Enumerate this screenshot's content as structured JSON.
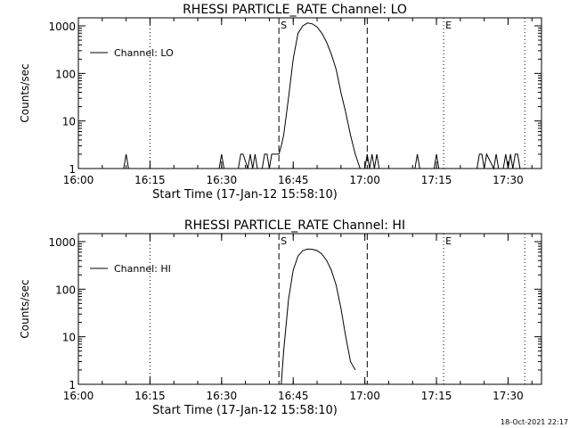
{
  "footer": {
    "timestamp": "18-Oct-2021 22:17"
  },
  "chart_data": [
    {
      "type": "line",
      "title": "RHESSI PARTICLE_RATE Channel: LO",
      "xlabel": "Start Time (17-Jan-12 15:58:10)",
      "ylabel": "Counts/sec",
      "yscale": "log",
      "ylim": [
        1,
        1000
      ],
      "xlim": [
        "16:00",
        "17:37"
      ],
      "xticks": [
        "16:00",
        "16:15",
        "16:30",
        "16:45",
        "17:00",
        "17:15",
        "17:30"
      ],
      "yticks": [
        "1",
        "10",
        "100",
        "1000"
      ],
      "legend": {
        "placement": "top-left"
      },
      "grid": false,
      "series": [
        {
          "name": "Channel: LO",
          "x": [
            "16:09:30",
            "16:10:00",
            "16:10:30",
            "16:29:30",
            "16:30:00",
            "16:30:30",
            "16:33:30",
            "16:34:00",
            "16:34:30",
            "16:35:30",
            "16:36:00",
            "16:36:30",
            "16:37:00",
            "16:37:30",
            "16:38:30",
            "16:39:00",
            "16:39:30",
            "16:40:00",
            "16:40:30",
            "16:41:00",
            "16:41:30",
            "16:42:00",
            "16:42:30",
            "16:43:00",
            "16:44:00",
            "16:45:00",
            "16:46:00",
            "16:47:00",
            "16:48:00",
            "16:49:00",
            "16:50:00",
            "16:51:00",
            "16:52:00",
            "16:53:00",
            "16:54:00",
            "16:55:00",
            "16:56:00",
            "16:57:00",
            "16:58:00",
            "16:59:00",
            "17:00:00",
            "17:00:30",
            "17:01:00",
            "17:01:30",
            "17:02:00",
            "17:02:30",
            "17:03:00",
            "17:03:30",
            "17:10:30",
            "17:11:00",
            "17:11:30",
            "17:14:30",
            "17:15:00",
            "17:15:30",
            "17:23:30",
            "17:24:00",
            "17:24:30",
            "17:25:00",
            "17:25:30",
            "17:27:00",
            "17:27:30",
            "17:28:00",
            "17:29:00",
            "17:29:30",
            "17:30:00",
            "17:30:30",
            "17:31:00",
            "17:31:30",
            "17:32:00",
            "17:32:30"
          ],
          "y": [
            1,
            2,
            1,
            1,
            2,
            1,
            1,
            2,
            2,
            1,
            2,
            1,
            2,
            1,
            1,
            2,
            2,
            1,
            2,
            2,
            2,
            2,
            3,
            5,
            30,
            200,
            700,
            1000,
            1150,
            1100,
            950,
            700,
            450,
            250,
            120,
            40,
            15,
            5,
            2,
            1,
            1,
            2,
            1,
            2,
            1,
            2,
            1,
            1,
            1,
            2,
            1,
            1,
            2,
            1,
            1,
            2,
            2,
            1,
            2,
            1,
            2,
            1,
            1,
            2,
            1,
            2,
            1,
            2,
            2,
            1
          ],
          "color": "#000000"
        }
      ],
      "annotations": [
        {
          "label": "S",
          "x": "16:42:00"
        },
        {
          "label": "E",
          "x": "17:16:30"
        }
      ],
      "vlines": [
        {
          "x": "16:15:00",
          "style": "dotted"
        },
        {
          "x": "16:42:00",
          "style": "dashed"
        },
        {
          "x": "17:00:30",
          "style": "dashed"
        },
        {
          "x": "17:16:30",
          "style": "dotted"
        },
        {
          "x": "17:33:30",
          "style": "dotted"
        }
      ]
    },
    {
      "type": "line",
      "title": "RHESSI PARTICLE_RATE Channel: HI",
      "xlabel": "Start Time (17-Jan-12 15:58:10)",
      "ylabel": "Counts/sec",
      "yscale": "log",
      "ylim": [
        1,
        1000
      ],
      "xlim": [
        "16:00",
        "17:37"
      ],
      "xticks": [
        "16:00",
        "16:15",
        "16:30",
        "16:45",
        "17:00",
        "17:15",
        "17:30"
      ],
      "yticks": [
        "1",
        "10",
        "100",
        "1000"
      ],
      "legend": {
        "placement": "top-left"
      },
      "grid": false,
      "series": [
        {
          "name": "Channel: HI",
          "x": [
            "16:42:30",
            "16:43:00",
            "16:44:00",
            "16:45:00",
            "16:46:00",
            "16:47:00",
            "16:48:00",
            "16:49:00",
            "16:50:00",
            "16:51:00",
            "16:52:00",
            "16:53:00",
            "16:54:00",
            "16:55:00",
            "16:56:00",
            "16:57:00",
            "16:58:00"
          ],
          "y": [
            1,
            5,
            60,
            250,
            500,
            650,
            700,
            690,
            650,
            550,
            400,
            250,
            120,
            40,
            10,
            3,
            2
          ],
          "color": "#000000"
        }
      ],
      "annotations": [
        {
          "label": "S",
          "x": "16:42:00"
        },
        {
          "label": "E",
          "x": "17:16:30"
        }
      ],
      "vlines": [
        {
          "x": "16:15:00",
          "style": "dotted"
        },
        {
          "x": "16:42:00",
          "style": "dashed"
        },
        {
          "x": "17:00:30",
          "style": "dashed"
        },
        {
          "x": "17:16:30",
          "style": "dotted"
        },
        {
          "x": "17:33:30",
          "style": "dotted"
        }
      ]
    }
  ]
}
